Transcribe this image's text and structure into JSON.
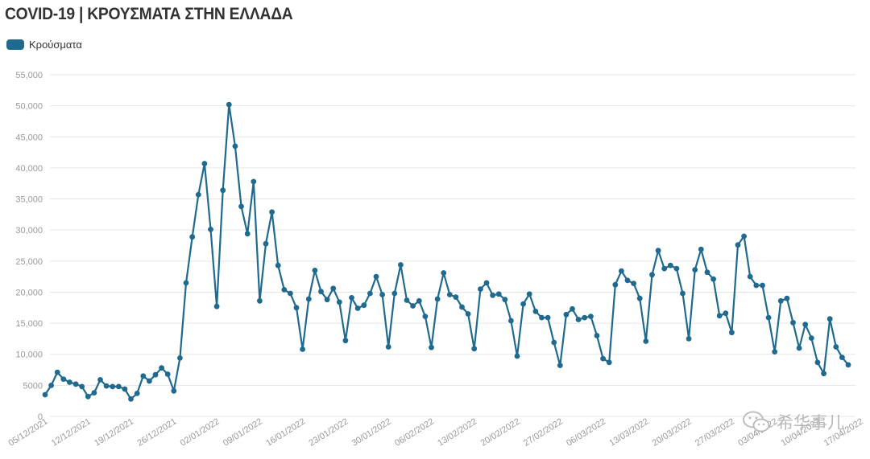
{
  "title": "COVID-19 | ΚΡΟΥΣΜΑΤΑ ΣΤΗΝ ΕΛΛΑΔΑ",
  "legend": {
    "label": "Κρούσματα",
    "color": "#1f6a8e"
  },
  "watermark": {
    "icon": "wechat-logo-icon",
    "text": "希华事儿"
  },
  "chart_data": {
    "type": "line",
    "ylim": [
      0,
      55000
    ],
    "y_ticks": [
      0,
      5000,
      10000,
      15000,
      20000,
      25000,
      30000,
      35000,
      40000,
      45000,
      50000,
      55000
    ],
    "y_tick_labels": [
      "0",
      "5000",
      "10,000",
      "15,000",
      "20,000",
      "25,000",
      "30,000",
      "35,000",
      "40,000",
      "45,000",
      "50,000",
      "55,000"
    ],
    "x_tick_labels": [
      "05/12/2021",
      "12/12/2021",
      "19/12/2021",
      "26/12/2021",
      "02/01/2022",
      "09/01/2022",
      "16/01/2022",
      "23/01/2022",
      "30/01/2022",
      "06/02/2022",
      "13/02/2022",
      "20/02/2022",
      "27/02/2022",
      "06/03/2022",
      "13/03/2022",
      "20/03/2022",
      "27/03/2022",
      "03/04/2022",
      "10/04/2022",
      "17/04/2022"
    ],
    "grid": true,
    "legend_position": "top-left",
    "series": [
      {
        "name": "Κρούσματα",
        "color": "#1f6a8e",
        "values": [
          3500,
          5000,
          7100,
          6000,
          5500,
          5200,
          4800,
          3200,
          3800,
          5900,
          4900,
          4800,
          4800,
          4400,
          2800,
          3700,
          6500,
          5700,
          6700,
          7800,
          6800,
          4100,
          9400,
          21500,
          28900,
          35700,
          40700,
          30100,
          17700,
          36400,
          50200,
          43500,
          33800,
          29400,
          37800,
          18600,
          27800,
          32900,
          24300,
          20400,
          19800,
          17500,
          10800,
          18900,
          23500,
          20100,
          18800,
          20600,
          18400,
          12200,
          19100,
          17400,
          17900,
          19800,
          22500,
          19600,
          11200,
          19800,
          24400,
          18700,
          17800,
          18600,
          16100,
          11100,
          18900,
          23100,
          19600,
          19200,
          17600,
          16500,
          10900,
          20500,
          21500,
          19500,
          19700,
          18800,
          15400,
          9700,
          18100,
          19700,
          16900,
          15900,
          15900,
          11900,
          8200,
          16400,
          17300,
          15600,
          15900,
          16100,
          13000,
          9300,
          8700,
          21200,
          23400,
          21900,
          21400,
          19000,
          12100,
          22800,
          26700,
          23800,
          24300,
          23800,
          19800,
          12500,
          23600,
          26900,
          23200,
          22100,
          16200,
          16600,
          13500,
          27600,
          29000,
          22500,
          21100,
          21100,
          15900,
          10400,
          18600,
          19000,
          15100,
          11000,
          14800,
          12600,
          8700,
          6900,
          15700,
          11200,
          9500,
          8300
        ]
      }
    ]
  }
}
